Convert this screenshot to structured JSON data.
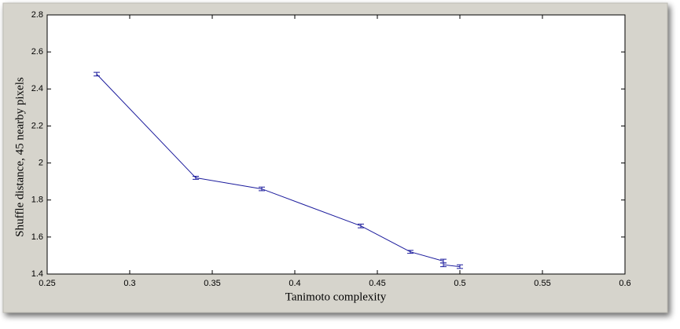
{
  "chart_data": {
    "type": "line",
    "xlabel": "Tanimoto complexity",
    "ylabel": "Shuffle distance, 45 nearby pixels",
    "xlim": [
      0.25,
      0.6
    ],
    "xticks": [
      0.25,
      0.3,
      0.35,
      0.4,
      0.45,
      0.5,
      0.55,
      0.6
    ],
    "ylim": [
      1.4,
      2.8
    ],
    "yticks": [
      1.4,
      1.6,
      1.8,
      2,
      2.2,
      2.4,
      2.6,
      2.8
    ],
    "series": [
      {
        "color": "#1a1a9c",
        "x": [
          0.28,
          0.34,
          0.38,
          0.44,
          0.47,
          0.49,
          0.49,
          0.5
        ],
        "values": [
          2.48,
          1.92,
          1.86,
          1.66,
          1.52,
          1.47,
          1.45,
          1.44
        ],
        "errors": [
          0.01,
          0.008,
          0.01,
          0.01,
          0.008,
          0.01,
          0.01,
          0.01
        ]
      }
    ]
  }
}
